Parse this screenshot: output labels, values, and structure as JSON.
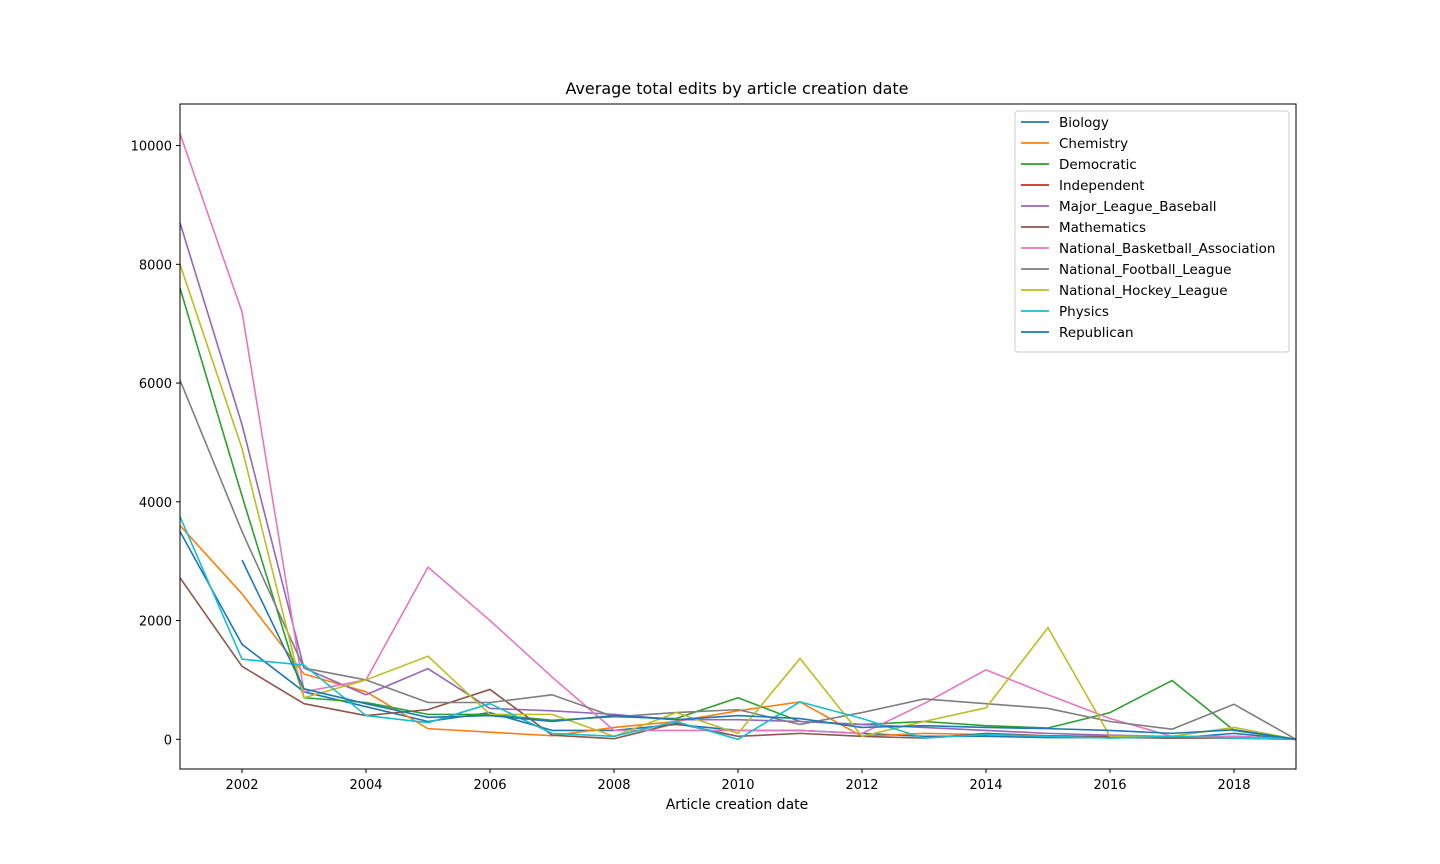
{
  "chart_data": {
    "type": "line",
    "title": "Average total edits by article creation date",
    "xlabel": "Article creation date",
    "ylabel": "",
    "xlim": [
      2001,
      2019
    ],
    "ylim": [
      -500,
      10700
    ],
    "xticks": [
      2002,
      2004,
      2006,
      2008,
      2010,
      2012,
      2014,
      2016,
      2018
    ],
    "yticks": [
      0,
      2000,
      4000,
      6000,
      8000,
      10000
    ],
    "legend_position": "top-right",
    "grid": false,
    "series": [
      {
        "name": "Biology",
        "color": "#1f77b4",
        "x": [
          2001,
          2002,
          2003,
          2004,
          2005,
          2006,
          2007,
          2008,
          2009,
          2010,
          2011,
          2012,
          2013,
          2014,
          2015,
          2016,
          2017,
          2018,
          2019
        ],
        "y": [
          3500,
          1600,
          800,
          550,
          300,
          450,
          150,
          150,
          250,
          150,
          150,
          100,
          50,
          50,
          30,
          30,
          20,
          100,
          0
        ]
      },
      {
        "name": "Chemistry",
        "color": "#ff7f0e",
        "x": [
          2001,
          2002,
          2003,
          2004,
          2005,
          2006,
          2007,
          2008,
          2009,
          2010,
          2011,
          2012,
          2013,
          2014,
          2015,
          2016,
          2017,
          2018,
          2019
        ],
        "y": [
          3600,
          2450,
          1100,
          800,
          180,
          120,
          60,
          200,
          300,
          480,
          630,
          50,
          100,
          80,
          60,
          50,
          50,
          50,
          0
        ]
      },
      {
        "name": "Democratic",
        "color": "#2ca02c",
        "x": [
          2001,
          2002,
          2003,
          2004,
          2005,
          2006,
          2007,
          2008,
          2009,
          2010,
          2011,
          2012,
          2013,
          2014,
          2015,
          2016,
          2017,
          2018,
          2019
        ],
        "y": [
          7600,
          4100,
          700,
          620,
          420,
          420,
          320,
          380,
          350,
          700,
          300,
          250,
          300,
          230,
          190,
          450,
          990,
          150,
          0
        ]
      },
      {
        "name": "Independent",
        "color": "#d62728",
        "x": [],
        "y": []
      },
      {
        "name": "Major_League_Baseball",
        "color": "#9467bd",
        "x": [
          2001,
          2002,
          2003,
          2004,
          2005,
          2006,
          2007,
          2008,
          2009,
          2010,
          2011,
          2012,
          2013,
          2014,
          2015,
          2016,
          2017,
          2018,
          2019
        ],
        "y": [
          8700,
          5300,
          1200,
          750,
          1190,
          520,
          480,
          420,
          330,
          330,
          300,
          250,
          200,
          150,
          100,
          70,
          50,
          50,
          0
        ]
      },
      {
        "name": "Mathematics",
        "color": "#8c564b",
        "x": [
          2001,
          2002,
          2003,
          2004,
          2005,
          2006,
          2007,
          2008,
          2009,
          2010,
          2011,
          2012,
          2013,
          2014,
          2015,
          2016,
          2017,
          2018,
          2019
        ],
        "y": [
          2720,
          1230,
          600,
          400,
          500,
          840,
          70,
          10,
          270,
          50,
          100,
          50,
          20,
          100,
          60,
          40,
          20,
          20,
          0
        ]
      },
      {
        "name": "National_Basketball_Association",
        "color": "#e377c2",
        "x": [
          2001,
          2002,
          2003,
          2004,
          2005,
          2006,
          2007,
          2008,
          2009,
          2010,
          2011,
          2012,
          2013,
          2014,
          2015,
          2016,
          2017,
          2018,
          2019
        ],
        "y": [
          10200,
          7200,
          800,
          1000,
          2900,
          2000,
          1050,
          150,
          150,
          150,
          150,
          100,
          600,
          1170,
          750,
          350,
          50,
          50,
          0
        ]
      },
      {
        "name": "National_Football_League",
        "color": "#7f7f7f",
        "x": [
          2001,
          2002,
          2003,
          2004,
          2005,
          2006,
          2007,
          2008,
          2009,
          2010,
          2011,
          2012,
          2013,
          2014,
          2015,
          2016,
          2017,
          2018,
          2019
        ],
        "y": [
          6050,
          3500,
          1200,
          1000,
          620,
          620,
          750,
          380,
          450,
          500,
          250,
          450,
          680,
          600,
          520,
          300,
          170,
          590,
          0
        ]
      },
      {
        "name": "National_Hockey_League",
        "color": "#bcbd22",
        "x": [
          2001,
          2002,
          2003,
          2004,
          2005,
          2006,
          2007,
          2008,
          2009,
          2010,
          2011,
          2012,
          2013,
          2014,
          2015,
          2016,
          2017,
          2018,
          2019
        ],
        "y": [
          8000,
          4900,
          700,
          1000,
          1400,
          420,
          420,
          50,
          450,
          100,
          1360,
          50,
          300,
          530,
          1880,
          50,
          50,
          200,
          0
        ]
      },
      {
        "name": "Physics",
        "color": "#17becf",
        "x": [
          2001,
          2002,
          2003,
          2004,
          2005,
          2006,
          2007,
          2008,
          2009,
          2010,
          2011,
          2012,
          2013,
          2014,
          2015,
          2016,
          2017,
          2018,
          2019
        ],
        "y": [
          3750,
          1350,
          1250,
          400,
          280,
          600,
          100,
          50,
          300,
          0,
          630,
          350,
          20,
          80,
          50,
          20,
          50,
          20,
          0
        ]
      },
      {
        "name": "Republican",
        "color": "#1f77b4",
        "x": [
          2002,
          2003,
          2004,
          2005,
          2006,
          2007,
          2008,
          2009,
          2010,
          2011,
          2012,
          2013,
          2014,
          2015,
          2016,
          2017,
          2018,
          2019
        ],
        "y": [
          3020,
          850,
          600,
          370,
          400,
          300,
          400,
          330,
          400,
          350,
          200,
          230,
          200,
          180,
          150,
          100,
          160,
          0
        ]
      }
    ]
  }
}
